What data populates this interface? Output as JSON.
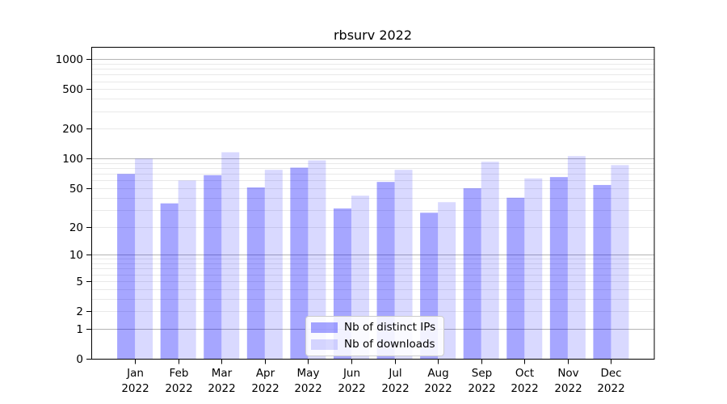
{
  "title": "rbsurv 2022",
  "legend": {
    "items": [
      {
        "label": "Nb of distinct IPs",
        "color": "rgba(0,0,255,0.35)"
      },
      {
        "label": "Nb of downloads",
        "color": "rgba(0,0,255,0.15)"
      }
    ]
  },
  "chart_data": {
    "type": "bar",
    "title": "rbsurv 2022",
    "categories": [
      "Jan 2022",
      "Feb 2022",
      "Mar 2022",
      "Apr 2022",
      "May 2022",
      "Jun 2022",
      "Jul 2022",
      "Aug 2022",
      "Sep 2022",
      "Oct 2022",
      "Nov 2022",
      "Dec 2022"
    ],
    "x_tick_months": [
      "Jan",
      "Feb",
      "Mar",
      "Apr",
      "May",
      "Jun",
      "Jul",
      "Aug",
      "Sep",
      "Oct",
      "Nov",
      "Dec"
    ],
    "x_tick_year": "2022",
    "series": [
      {
        "name": "Nb of distinct IPs",
        "values": [
          70,
          35,
          68,
          51,
          81,
          31,
          58,
          28,
          50,
          40,
          65,
          54
        ]
      },
      {
        "name": "Nb of downloads",
        "values": [
          100,
          60,
          116,
          77,
          96,
          42,
          77,
          36,
          93,
          63,
          106,
          86
        ]
      }
    ],
    "xlabel": "",
    "ylabel": "",
    "y_scale": "log1p",
    "y_ticks": [
      0,
      1,
      2,
      5,
      10,
      20,
      50,
      100,
      200,
      500,
      1000
    ],
    "ylim": [
      0,
      1300
    ],
    "grid": "major-and-minor",
    "legend_position": "lower center",
    "colors": {
      "bar_distinct_ips": "rgba(0,0,255,0.35)",
      "bar_downloads": "rgba(0,0,255,0.15)",
      "major_grid": "#b4b4b4",
      "minor_grid": "#e9e9e9",
      "spine": "#000000",
      "tick_text": "#000000"
    }
  }
}
